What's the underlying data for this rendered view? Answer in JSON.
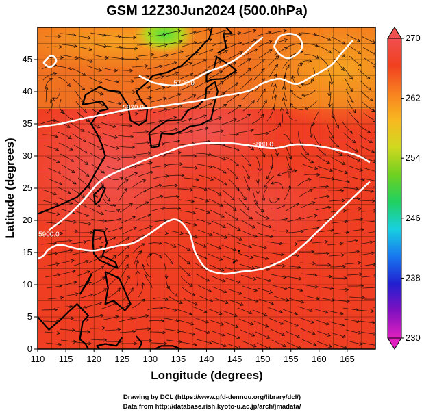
{
  "chart_data": {
    "type": "heatmap",
    "title": "GSM 12Z30Jun2024 (500.0hPa)",
    "xlabel": "Longitude (degrees)",
    "ylabel": "Latitude  (degrees)",
    "xlim": [
      110,
      170
    ],
    "ylim": [
      0,
      50
    ],
    "x_ticks": [
      "110",
      "115",
      "120",
      "125",
      "130",
      "135",
      "140",
      "145",
      "150",
      "155",
      "160",
      "165"
    ],
    "y_ticks": [
      "0",
      "5",
      "10",
      "15",
      "20",
      "25",
      "30",
      "35",
      "40",
      "45"
    ],
    "colorbar": {
      "min": 230,
      "max": 270,
      "ticks": [
        "270",
        "262",
        "254",
        "246",
        "238",
        "230"
      ],
      "colors": [
        "#e020c0",
        "#8010c0",
        "#2020d0",
        "#1878f0",
        "#18d0e0",
        "#20d060",
        "#70d020",
        "#d0d820",
        "#f8b820",
        "#f88020",
        "#f04020",
        "#f05050"
      ]
    },
    "contours": [
      {
        "label": "5700.0",
        "label_lon": 136,
        "label_lat": 41,
        "points": [
          [
            128,
            42.5
          ],
          [
            131,
            41.3
          ],
          [
            135,
            41
          ],
          [
            138,
            42
          ],
          [
            140,
            43
          ],
          [
            143,
            44
          ],
          [
            146,
            45.5
          ],
          [
            148,
            47
          ],
          [
            150,
            48.5
          ]
        ]
      },
      {
        "label": "5820.0",
        "label_lon": 127,
        "label_lat": 37.2,
        "points": [
          [
            110,
            34.5
          ],
          [
            114,
            35
          ],
          [
            118,
            35.8
          ],
          [
            122,
            36.5
          ],
          [
            126,
            37.2
          ],
          [
            130,
            37.5
          ],
          [
            134,
            38
          ],
          [
            138,
            38.5
          ],
          [
            141,
            39
          ],
          [
            144,
            39.5
          ],
          [
            146,
            39.8
          ],
          [
            148,
            40.3
          ],
          [
            150,
            41.3
          ],
          [
            153,
            42
          ],
          [
            156,
            41.2
          ],
          [
            159,
            42.5
          ],
          [
            162,
            44
          ],
          [
            164,
            46
          ],
          [
            166,
            48
          ]
        ]
      },
      {
        "label": "5880.0",
        "label_lon": 150,
        "label_lat": 31.5,
        "points": [
          [
            112,
            18.5
          ],
          [
            115,
            20.5
          ],
          [
            118,
            23
          ],
          [
            121,
            26
          ],
          [
            124,
            27.5
          ],
          [
            128,
            29
          ],
          [
            132,
            30.3
          ],
          [
            136,
            31.5
          ],
          [
            140,
            32
          ],
          [
            144,
            32
          ],
          [
            148,
            31.6
          ],
          [
            152,
            31.2
          ],
          [
            156,
            31.8
          ],
          [
            160,
            31.5
          ],
          [
            164,
            30.8
          ],
          [
            167,
            30
          ],
          [
            169,
            29
          ]
        ]
      },
      {
        "label": "5900.0",
        "label_lon": 112,
        "label_lat": 17.5,
        "points": [
          [
            110,
            14
          ],
          [
            111,
            14.5
          ],
          [
            112,
            15.5
          ],
          [
            114,
            16.2
          ],
          [
            117,
            15.6
          ],
          [
            120,
            15.3
          ],
          [
            124,
            16
          ],
          [
            127,
            16.5
          ],
          [
            130,
            18
          ],
          [
            133,
            19.8
          ],
          [
            135,
            20
          ],
          [
            137,
            18
          ],
          [
            138,
            15
          ],
          [
            140,
            12.5
          ],
          [
            143,
            11.7
          ],
          [
            146,
            12
          ],
          [
            150,
            12.5
          ],
          [
            154,
            14
          ],
          [
            157,
            16
          ],
          [
            160,
            18.5
          ],
          [
            163,
            21
          ],
          [
            166,
            23.5
          ],
          [
            169,
            26
          ]
        ]
      },
      {
        "label": "",
        "label_lon": 0,
        "label_lat": 0,
        "points": [
          [
            152,
            47
          ],
          [
            153,
            45.8
          ],
          [
            154.5,
            45.2
          ],
          [
            156,
            45.8
          ],
          [
            157,
            47
          ],
          [
            156.5,
            48.4
          ],
          [
            155,
            49
          ],
          [
            153,
            48.6
          ],
          [
            152,
            47
          ]
        ]
      },
      {
        "label": "",
        "label_lon": 0,
        "label_lat": 0,
        "points": [
          [
            111,
            44.5
          ],
          [
            112.2,
            43.8
          ],
          [
            113.3,
            44.8
          ],
          [
            112.4,
            45.6
          ],
          [
            111,
            44.5
          ]
        ]
      }
    ]
  },
  "credits": {
    "line1": "Drawing by DCL (https://www.gfd-dennou.org/library/dcl/)",
    "line2": "Data from http://database.rish.kyoto-u.ac.jp/arch/jmadata/"
  }
}
